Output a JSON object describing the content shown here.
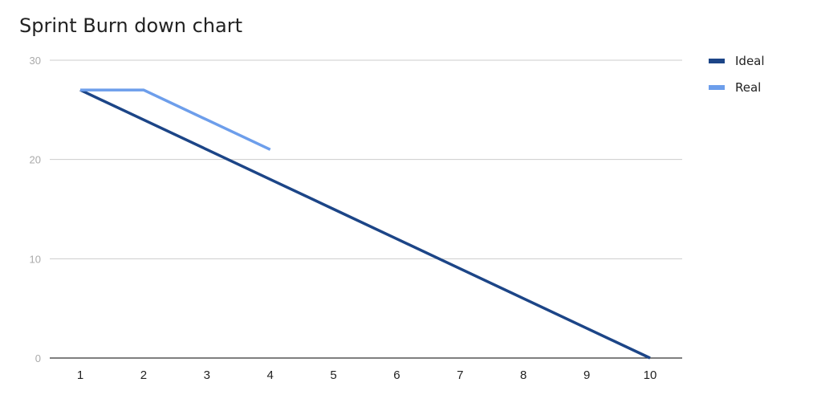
{
  "chart_data": {
    "type": "line",
    "title": "Sprint Burn down chart",
    "xlabel": "",
    "ylabel": "",
    "x": [
      1,
      2,
      3,
      4,
      5,
      6,
      7,
      8,
      9,
      10
    ],
    "xlim": [
      1,
      10
    ],
    "ylim": [
      0,
      30
    ],
    "y_ticks": [
      0,
      10,
      20,
      30
    ],
    "grid": true,
    "legend_position": "right",
    "series": [
      {
        "name": "Ideal",
        "color": "#1c4587",
        "values": [
          27,
          24,
          21,
          18,
          15,
          12,
          9,
          6,
          3,
          0
        ]
      },
      {
        "name": "Real",
        "color": "#6d9eeb",
        "values": [
          27,
          27,
          24,
          21,
          null,
          null,
          null,
          null,
          null,
          null
        ]
      }
    ],
    "axis_text_color": "#222222",
    "y_tick_color": "#aaaaaa",
    "grid_color": "#cccccc",
    "baseline_color": "#333333"
  }
}
